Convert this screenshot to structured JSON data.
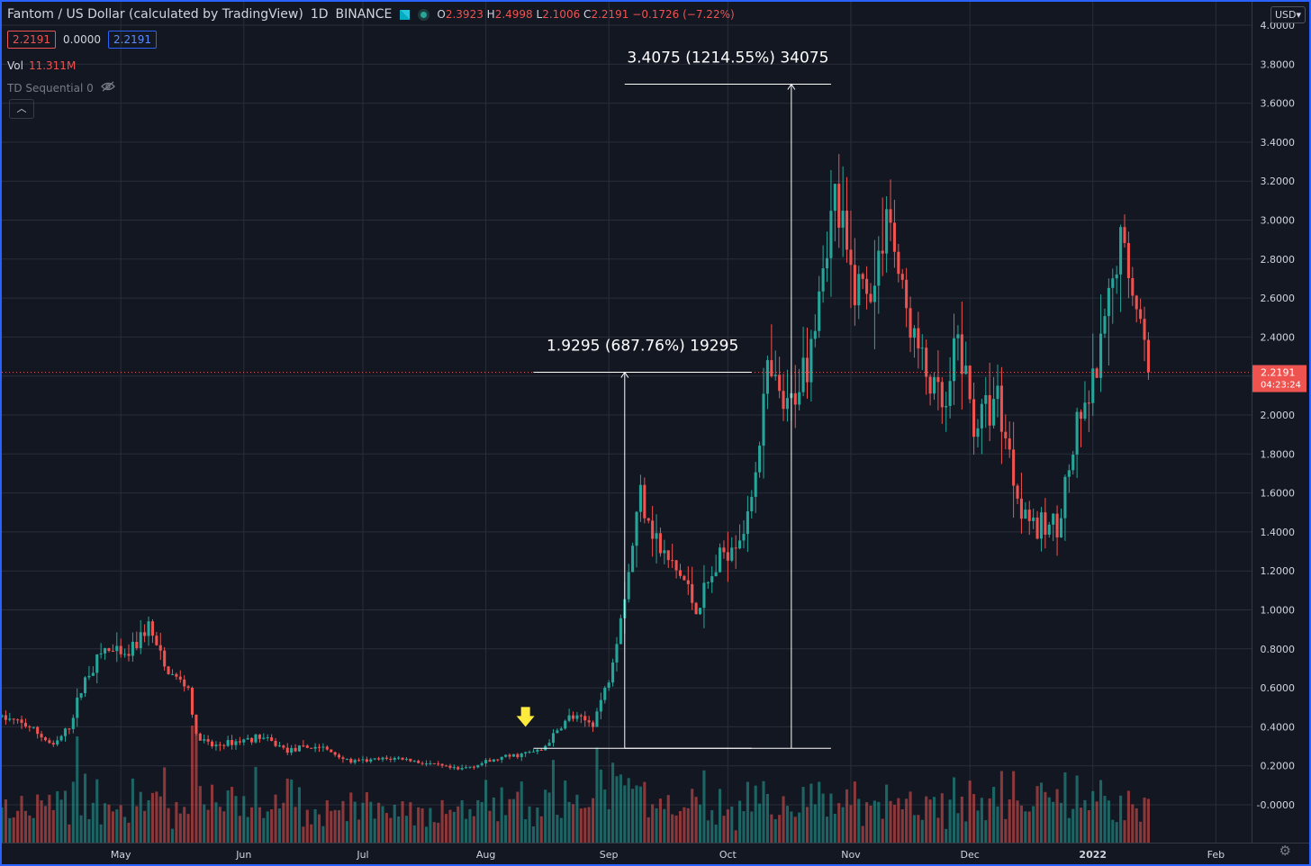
{
  "header": {
    "symbol": "Fantom / US Dollar (calculated by TradingView)",
    "interval": "1D",
    "exchange": "BINANCE",
    "ohlc": {
      "open_label": "O",
      "open": "2.3923",
      "high_label": "H",
      "high": "2.4998",
      "low_label": "L",
      "low": "2.1006",
      "close_label": "C",
      "close": "2.2191",
      "change": "−0.1726 (−7.22%)"
    },
    "price_boxes": [
      "2.2191",
      "0.0000",
      "2.2191"
    ],
    "volume_label": "Vol",
    "volume_value": "11.311M",
    "indicator_label": "TD Sequential 0",
    "currency": "USD"
  },
  "colors": {
    "background": "#131722",
    "up": "#26a69a",
    "down": "#ef5350",
    "grid": "#2a2e39",
    "measure": "#ffffff",
    "arrow": "#ffeb3b"
  },
  "chart_data": {
    "type": "candlestick",
    "title": "Fantom / US Dollar (calculated by TradingView)",
    "x_tick_labels": [
      "May",
      "Jun",
      "Jul",
      "Aug",
      "Sep",
      "Oct",
      "Nov",
      "Dec",
      "2022",
      "Feb"
    ],
    "y_tick_labels": [
      "-0.0000",
      "0.2000",
      "0.4000",
      "0.6000",
      "0.8000",
      "1.0000",
      "1.2000",
      "1.4000",
      "1.6000",
      "1.8000",
      "2.0000",
      "2.2000",
      "2.4000",
      "2.6000",
      "2.8000",
      "3.0000",
      "3.2000",
      "3.4000",
      "3.6000",
      "3.8000",
      "4.0000"
    ],
    "y_range": [
      -0.2,
      4.0
    ],
    "x_range": [
      "2021-04-01",
      "2022-02-10"
    ],
    "grid": true,
    "last_price": {
      "value": 2.2191,
      "label": "2.2191",
      "countdown": "04:23:24"
    },
    "measurements": [
      {
        "label": "1.9295 (687.76%) 19295",
        "from": 0.29,
        "to": 2.2195,
        "start": "2021-08-13",
        "mid": "2021-09-05",
        "end": "2021-10-07"
      },
      {
        "label": "3.4075 (1214.55%) 34075",
        "from": 0.29,
        "to": 3.6975,
        "start": "2021-09-05",
        "mid": "2021-10-17",
        "end": "2021-10-27"
      }
    ],
    "signal_arrow": {
      "date": "2021-08-11",
      "value": 0.4
    },
    "keypoints": [
      [
        "2021-04-01",
        0.45
      ],
      [
        "2021-04-08",
        0.4
      ],
      [
        "2021-04-14",
        0.3
      ],
      [
        "2021-04-18",
        0.4
      ],
      [
        "2021-04-22",
        0.65
      ],
      [
        "2021-04-27",
        0.8
      ],
      [
        "2021-05-02",
        0.75
      ],
      [
        "2021-05-08",
        0.92
      ],
      [
        "2021-05-12",
        0.7
      ],
      [
        "2021-05-18",
        0.6
      ],
      [
        "2021-05-20",
        0.35
      ],
      [
        "2021-05-24",
        0.3
      ],
      [
        "2021-06-05",
        0.35
      ],
      [
        "2021-06-12",
        0.28
      ],
      [
        "2021-06-20",
        0.3
      ],
      [
        "2021-06-28",
        0.22
      ],
      [
        "2021-07-10",
        0.24
      ],
      [
        "2021-07-20",
        0.2
      ],
      [
        "2021-07-25",
        0.18
      ],
      [
        "2021-08-05",
        0.24
      ],
      [
        "2021-08-15",
        0.28
      ],
      [
        "2021-08-22",
        0.45
      ],
      [
        "2021-08-28",
        0.42
      ],
      [
        "2021-09-01",
        0.65
      ],
      [
        "2021-09-06",
        1.2
      ],
      [
        "2021-09-09",
        1.62
      ],
      [
        "2021-09-14",
        1.3
      ],
      [
        "2021-09-20",
        1.15
      ],
      [
        "2021-09-23",
        1.0
      ],
      [
        "2021-09-30",
        1.3
      ],
      [
        "2021-10-06",
        1.45
      ],
      [
        "2021-10-11",
        2.2
      ],
      [
        "2021-10-16",
        2.0
      ],
      [
        "2021-10-21",
        2.3
      ],
      [
        "2021-10-25",
        2.8
      ],
      [
        "2021-10-28",
        3.1
      ],
      [
        "2021-11-01",
        2.7
      ],
      [
        "2021-11-07",
        2.65
      ],
      [
        "2021-11-10",
        3.1
      ],
      [
        "2021-11-14",
        2.6
      ],
      [
        "2021-11-20",
        2.2
      ],
      [
        "2021-11-25",
        2.0
      ],
      [
        "2021-11-28",
        2.4
      ],
      [
        "2021-12-02",
        1.95
      ],
      [
        "2021-12-08",
        2.1
      ],
      [
        "2021-12-13",
        1.6
      ],
      [
        "2021-12-18",
        1.4
      ],
      [
        "2021-12-23",
        1.45
      ],
      [
        "2021-12-28",
        1.9
      ],
      [
        "2022-01-02",
        2.2
      ],
      [
        "2022-01-08",
        2.9
      ],
      [
        "2022-01-12",
        2.6
      ],
      [
        "2022-01-15",
        2.22
      ]
    ]
  }
}
